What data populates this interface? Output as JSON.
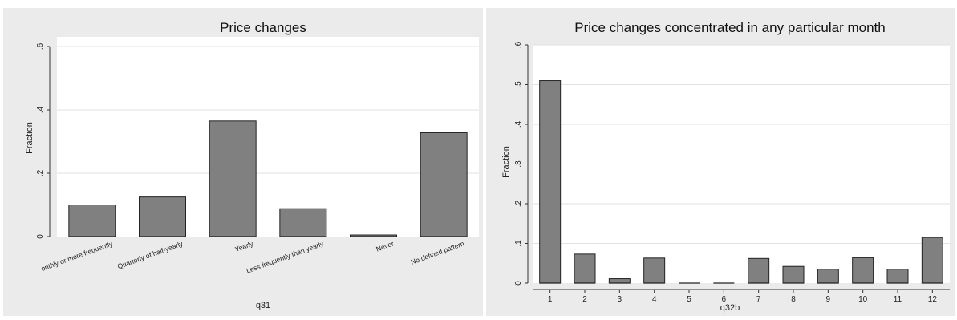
{
  "chart_data": [
    {
      "type": "bar",
      "title": "Price changes",
      "xlabel": "q31",
      "ylabel": "Fraction",
      "ylim": [
        0,
        0.6
      ],
      "yticks": [
        0,
        0.2,
        0.4,
        0.6
      ],
      "ytick_labels": [
        "0",
        ".2",
        ".4",
        ".6"
      ],
      "categories": [
        "onthly or more frequently",
        "Quarterly of half-yearly",
        "Yearly",
        "Less frequently than yearly",
        "Never",
        "No defined pattern"
      ],
      "values": [
        0.1,
        0.125,
        0.365,
        0.088,
        0.005,
        0.328
      ],
      "grid": true,
      "colors": {
        "bar": "#808080",
        "background": "#ebebeb",
        "plot": "#ffffff"
      }
    },
    {
      "type": "bar",
      "title": "Price changes concentrated in any particular month",
      "xlabel": "q32b",
      "ylabel": "Fraction",
      "ylim": [
        0,
        0.6
      ],
      "yticks": [
        0,
        0.1,
        0.2,
        0.3,
        0.4,
        0.5,
        0.6
      ],
      "ytick_labels": [
        "0",
        ".1",
        ".2",
        ".3",
        ".4",
        ".5",
        ".6"
      ],
      "categories": [
        "1",
        "2",
        "3",
        "4",
        "5",
        "6",
        "7",
        "8",
        "9",
        "10",
        "11",
        "12"
      ],
      "values": [
        0.51,
        0.073,
        0.011,
        0.063,
        0,
        0,
        0.062,
        0.042,
        0.035,
        0.064,
        0.035,
        0.115
      ],
      "grid": true,
      "colors": {
        "bar": "#808080",
        "background": "#ebebeb",
        "plot": "#ffffff"
      }
    }
  ]
}
